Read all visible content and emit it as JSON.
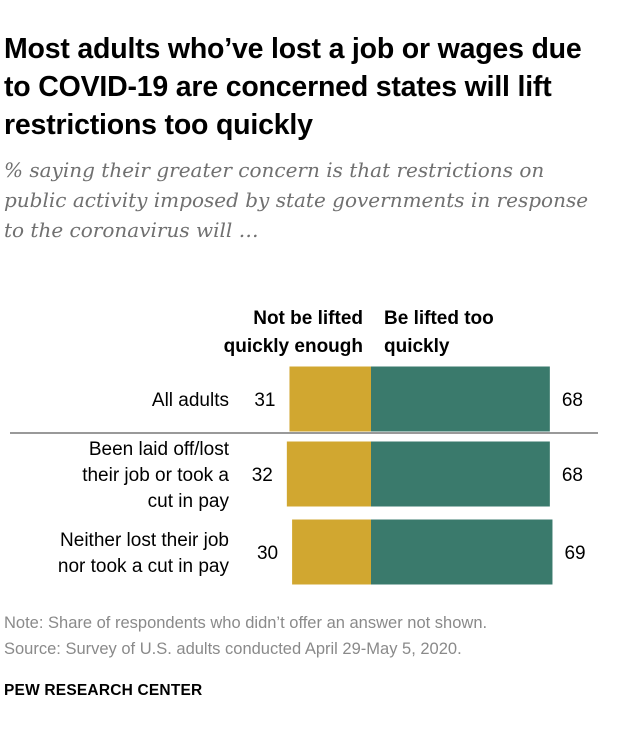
{
  "title": "Most adults who’ve lost a job or wages due to COVID-19 are concerned states will lift restrictions too quickly",
  "subtitle": "% saying their greater concern is that restrictions on public activity imposed by state governments in response to the coronavirus will …",
  "note": "Note: Share of respondents who didn’t offer an answer not shown.",
  "source": "Source: Survey of U.S. adults conducted April 29-May 5, 2020.",
  "brand": "PEW RESEARCH CENTER",
  "colors": {
    "left": "#d1a730",
    "right": "#3a7a6c",
    "divider": "#999999"
  },
  "chart_data": {
    "type": "bar",
    "orientation": "horizontal-diverging",
    "categories": [
      "All adults",
      "Been laid off/lost their job or took a cut in pay",
      "Neither lost their job nor took a cut in pay"
    ],
    "category_lines": [
      [
        "All adults"
      ],
      [
        "Been laid off/lost",
        "their job or took a",
        "cut in pay"
      ],
      [
        "Neither lost their job",
        "nor took a cut in pay"
      ]
    ],
    "series": [
      {
        "name": "Not be lifted quickly enough",
        "name_lines": [
          "Not be lifted",
          "quickly enough"
        ],
        "values": [
          31,
          32,
          30
        ]
      },
      {
        "name": "Be lifted too quickly",
        "name_lines": [
          "Be lifted too",
          "quickly"
        ],
        "values": [
          68,
          68,
          69
        ]
      }
    ]
  }
}
